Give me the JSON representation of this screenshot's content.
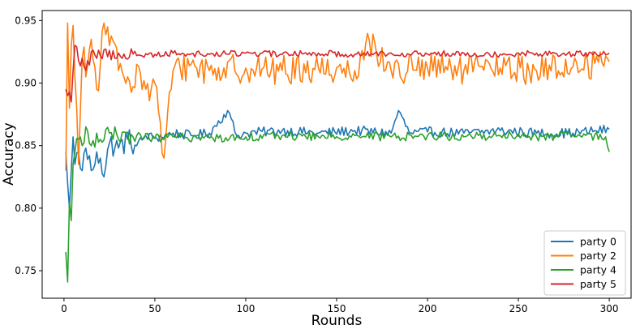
{
  "chart_data": {
    "type": "line",
    "title": "",
    "xlabel": "Rounds",
    "ylabel": "Accuracy",
    "xlim": [
      -12,
      312
    ],
    "ylim": [
      0.728,
      0.958
    ],
    "xticks": [
      0,
      50,
      100,
      150,
      200,
      250,
      300
    ],
    "xtick_labels": [
      "0",
      "50",
      "100",
      "150",
      "200",
      "250",
      "300"
    ],
    "yticks": [
      0.75,
      0.8,
      0.85,
      0.9,
      0.95
    ],
    "ytick_labels": [
      "0.75",
      "0.80",
      "0.85",
      "0.90",
      "0.95"
    ],
    "grid": false,
    "legend_position": "lower-right",
    "x_start": 1,
    "x_end": 300,
    "series": [
      {
        "name": "party 0",
        "color": "#1f77b4",
        "keypoints": [
          [
            1,
            0.845
          ],
          [
            2,
            0.82
          ],
          [
            3,
            0.8
          ],
          [
            4,
            0.83
          ],
          [
            5,
            0.857
          ],
          [
            6,
            0.835
          ],
          [
            8,
            0.845
          ],
          [
            10,
            0.83
          ],
          [
            12,
            0.848
          ],
          [
            15,
            0.83
          ],
          [
            18,
            0.845
          ],
          [
            20,
            0.84
          ],
          [
            22,
            0.825
          ],
          [
            25,
            0.852
          ],
          [
            30,
            0.848
          ],
          [
            35,
            0.855
          ],
          [
            40,
            0.85
          ],
          [
            45,
            0.858
          ],
          [
            50,
            0.856
          ],
          [
            60,
            0.86
          ],
          [
            70,
            0.858
          ],
          [
            80,
            0.86
          ],
          [
            90,
            0.878
          ],
          [
            95,
            0.858
          ],
          [
            100,
            0.86
          ],
          [
            120,
            0.862
          ],
          [
            140,
            0.86
          ],
          [
            160,
            0.862
          ],
          [
            180,
            0.86
          ],
          [
            184,
            0.878
          ],
          [
            190,
            0.86
          ],
          [
            200,
            0.861
          ],
          [
            220,
            0.86
          ],
          [
            240,
            0.862
          ],
          [
            260,
            0.86
          ],
          [
            280,
            0.86
          ],
          [
            300,
            0.863
          ]
        ],
        "noise": 0.004,
        "noise_early": 0.01
      },
      {
        "name": "party 2",
        "color": "#ff7f0e",
        "keypoints": [
          [
            1,
            0.83
          ],
          [
            2,
            0.948
          ],
          [
            3,
            0.88
          ],
          [
            4,
            0.93
          ],
          [
            5,
            0.946
          ],
          [
            6,
            0.905
          ],
          [
            8,
            0.835
          ],
          [
            10,
            0.92
          ],
          [
            12,
            0.905
          ],
          [
            15,
            0.935
          ],
          [
            18,
            0.895
          ],
          [
            20,
            0.915
          ],
          [
            22,
            0.948
          ],
          [
            25,
            0.93
          ],
          [
            30,
            0.91
          ],
          [
            35,
            0.905
          ],
          [
            40,
            0.915
          ],
          [
            45,
            0.895
          ],
          [
            50,
            0.9
          ],
          [
            55,
            0.84
          ],
          [
            60,
            0.91
          ],
          [
            70,
            0.915
          ],
          [
            80,
            0.91
          ],
          [
            100,
            0.912
          ],
          [
            120,
            0.91
          ],
          [
            140,
            0.912
          ],
          [
            160,
            0.91
          ],
          [
            168,
            0.934
          ],
          [
            180,
            0.91
          ],
          [
            200,
            0.912
          ],
          [
            220,
            0.91
          ],
          [
            240,
            0.912
          ],
          [
            260,
            0.91
          ],
          [
            280,
            0.913
          ],
          [
            300,
            0.917
          ]
        ],
        "noise": 0.012,
        "noise_early": 0.018
      },
      {
        "name": "party 4",
        "color": "#2ca02c",
        "keypoints": [
          [
            1,
            0.765
          ],
          [
            2,
            0.741
          ],
          [
            3,
            0.805
          ],
          [
            4,
            0.79
          ],
          [
            5,
            0.835
          ],
          [
            6,
            0.845
          ],
          [
            8,
            0.855
          ],
          [
            10,
            0.85
          ],
          [
            12,
            0.865
          ],
          [
            15,
            0.85
          ],
          [
            18,
            0.86
          ],
          [
            20,
            0.855
          ],
          [
            25,
            0.86
          ],
          [
            30,
            0.855
          ],
          [
            40,
            0.858
          ],
          [
            50,
            0.856
          ],
          [
            60,
            0.857
          ],
          [
            80,
            0.856
          ],
          [
            100,
            0.857
          ],
          [
            120,
            0.858
          ],
          [
            140,
            0.857
          ],
          [
            160,
            0.858
          ],
          [
            180,
            0.857
          ],
          [
            200,
            0.858
          ],
          [
            220,
            0.857
          ],
          [
            240,
            0.858
          ],
          [
            260,
            0.857
          ],
          [
            280,
            0.858
          ],
          [
            298,
            0.857
          ],
          [
            300,
            0.845
          ]
        ],
        "noise": 0.0035,
        "noise_early": 0.008
      },
      {
        "name": "party 5",
        "color": "#d62728",
        "keypoints": [
          [
            1,
            0.895
          ],
          [
            2,
            0.89
          ],
          [
            3,
            0.893
          ],
          [
            4,
            0.885
          ],
          [
            5,
            0.91
          ],
          [
            6,
            0.93
          ],
          [
            8,
            0.918
          ],
          [
            10,
            0.92
          ],
          [
            12,
            0.91
          ],
          [
            15,
            0.925
          ],
          [
            20,
            0.922
          ],
          [
            30,
            0.924
          ],
          [
            40,
            0.922
          ],
          [
            50,
            0.923
          ],
          [
            60,
            0.924
          ],
          [
            80,
            0.923
          ],
          [
            100,
            0.924
          ],
          [
            120,
            0.923
          ],
          [
            140,
            0.924
          ],
          [
            160,
            0.923
          ],
          [
            180,
            0.924
          ],
          [
            200,
            0.923
          ],
          [
            220,
            0.924
          ],
          [
            240,
            0.923
          ],
          [
            260,
            0.924
          ],
          [
            280,
            0.923
          ],
          [
            300,
            0.924
          ]
        ],
        "noise": 0.0025,
        "noise_early": 0.006
      }
    ]
  }
}
